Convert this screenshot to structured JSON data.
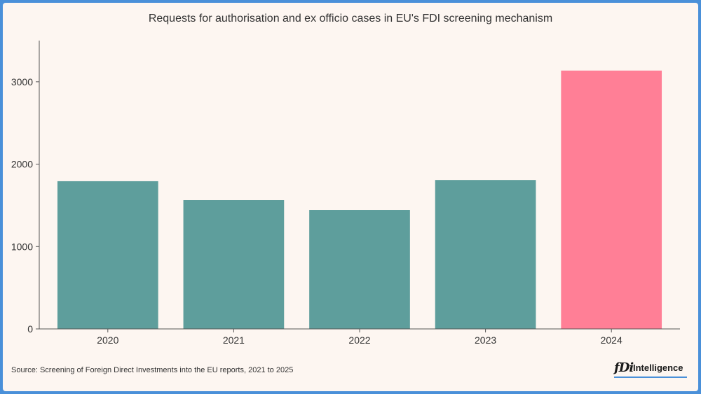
{
  "chart_data": {
    "type": "bar",
    "title": "Requests for authorisation and ex officio cases in EU's FDI screening mechanism",
    "categories": [
      "2020",
      "2021",
      "2022",
      "2023",
      "2024"
    ],
    "values": [
      1793,
      1563,
      1444,
      1808,
      3136
    ],
    "colors": [
      "#5e9e9c",
      "#5e9e9c",
      "#5e9e9c",
      "#5e9e9c",
      "#ff7f96"
    ],
    "xlabel": "",
    "ylabel": "",
    "ylim": [
      0,
      3500
    ],
    "yticks": [
      0,
      1000,
      2000,
      3000
    ]
  },
  "source": "Source: Screening of Foreign Direct Investments into the EU reports, 2021 to 2025",
  "brand": {
    "mark": "fDi",
    "name": "Intelligence"
  },
  "colors": {
    "frame": "#4a90d9",
    "background": "#fdf6f1",
    "axis": "#555555"
  }
}
